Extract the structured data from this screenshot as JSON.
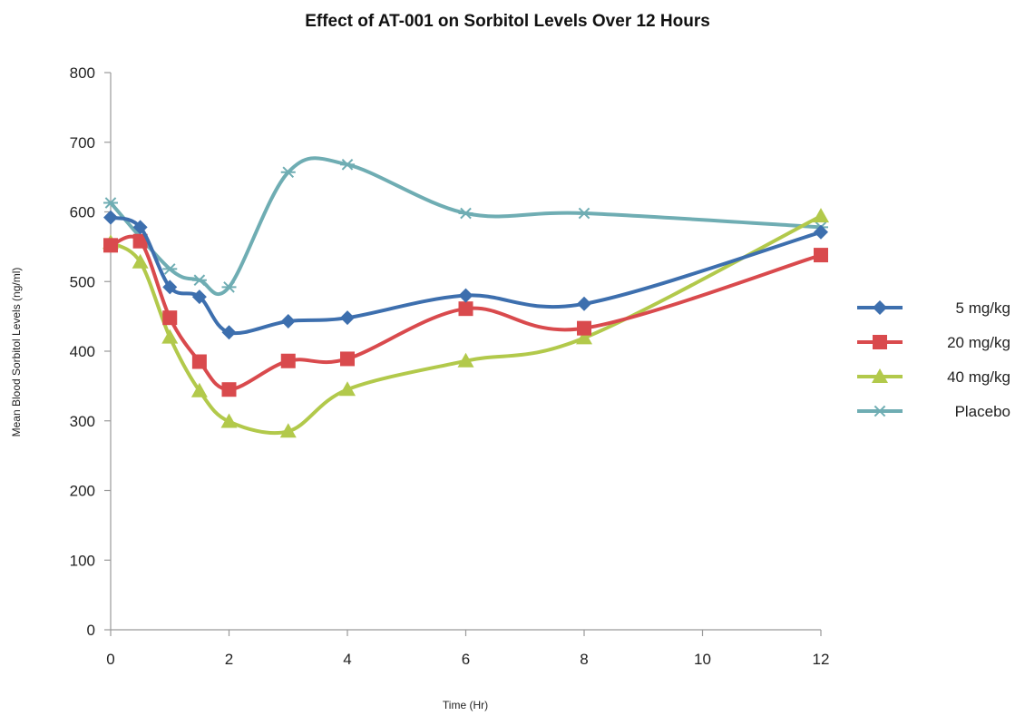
{
  "chart_data": {
    "type": "line",
    "title": "Effect of AT-001 on Sorbitol Levels Over 12 Hours",
    "xlabel": "Time (Hr)",
    "ylabel": "Mean Blood Sorbitol Levels (ng/ml)",
    "xlim": [
      0,
      12
    ],
    "ylim": [
      0,
      800
    ],
    "xticks": [
      0,
      2,
      4,
      6,
      8,
      10,
      12
    ],
    "yticks": [
      0,
      100,
      200,
      300,
      400,
      500,
      600,
      700,
      800
    ],
    "grid": false,
    "legend_position": "right",
    "series": [
      {
        "name": "5 mg/kg",
        "color": "#3d6fae",
        "marker": "diamond",
        "x": [
          0,
          0.5,
          1,
          1.5,
          2,
          3,
          4,
          6,
          8,
          12
        ],
        "y": [
          592,
          578,
          492,
          478,
          427,
          443,
          448,
          480,
          468,
          571
        ]
      },
      {
        "name": "20 mg/kg",
        "color": "#d94a4d",
        "marker": "square",
        "x": [
          0,
          0.5,
          1,
          1.5,
          2,
          3,
          4,
          6,
          8,
          12
        ],
        "y": [
          552,
          558,
          448,
          385,
          345,
          386,
          389,
          461,
          433,
          538
        ]
      },
      {
        "name": "40 mg/kg",
        "color": "#b2c94b",
        "marker": "triangle",
        "x": [
          0,
          0.5,
          1,
          1.5,
          2,
          3,
          4,
          6,
          8,
          12
        ],
        "y": [
          556,
          528,
          420,
          343,
          299,
          285,
          345,
          386,
          419,
          594
        ]
      },
      {
        "name": "Placebo",
        "color": "#6fadb3",
        "marker": "star",
        "x": [
          0,
          1,
          1.5,
          2,
          3,
          4,
          6,
          8,
          12
        ],
        "y": [
          613,
          518,
          502,
          492,
          657,
          668,
          598,
          598,
          578
        ]
      }
    ]
  }
}
